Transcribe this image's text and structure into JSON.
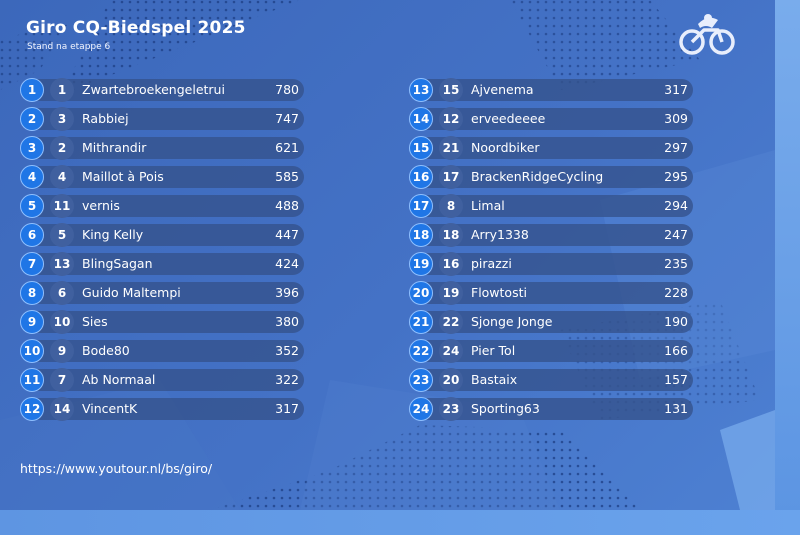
{
  "header": {
    "title": "Giro CQ-Biedspel 2025",
    "subtitle": "Stand na etappe 6",
    "logo_icon": "cyclist-logo-icon"
  },
  "standings_left": [
    {
      "rank": "1",
      "prev": "1",
      "name": "Zwartebroekengeletrui",
      "points": "780"
    },
    {
      "rank": "2",
      "prev": "3",
      "name": "Rabbiej",
      "points": "747"
    },
    {
      "rank": "3",
      "prev": "2",
      "name": "Mithrandir",
      "points": "621"
    },
    {
      "rank": "4",
      "prev": "4",
      "name": "Maillot à Pois",
      "points": "585"
    },
    {
      "rank": "5",
      "prev": "11",
      "name": "vernis",
      "points": "488"
    },
    {
      "rank": "6",
      "prev": "5",
      "name": "King Kelly",
      "points": "447"
    },
    {
      "rank": "7",
      "prev": "13",
      "name": "BlingSagan",
      "points": "424"
    },
    {
      "rank": "8",
      "prev": "6",
      "name": "Guido Maltempi",
      "points": "396"
    },
    {
      "rank": "9",
      "prev": "10",
      "name": "Sies",
      "points": "380"
    },
    {
      "rank": "10",
      "prev": "9",
      "name": "Bode80",
      "points": "352"
    },
    {
      "rank": "11",
      "prev": "7",
      "name": "Ab Normaal",
      "points": "322"
    },
    {
      "rank": "12",
      "prev": "14",
      "name": "VincentK",
      "points": "317"
    }
  ],
  "standings_right": [
    {
      "rank": "13",
      "prev": "15",
      "name": "Ajvenema",
      "points": "317"
    },
    {
      "rank": "14",
      "prev": "12",
      "name": "erveedeeee",
      "points": "309"
    },
    {
      "rank": "15",
      "prev": "21",
      "name": "Noordbiker",
      "points": "297"
    },
    {
      "rank": "16",
      "prev": "17",
      "name": "BrackenRidgeCycling",
      "points": "295"
    },
    {
      "rank": "17",
      "prev": "8",
      "name": "Limal",
      "points": "294"
    },
    {
      "rank": "18",
      "prev": "18",
      "name": "Arry1338",
      "points": "247"
    },
    {
      "rank": "19",
      "prev": "16",
      "name": "pirazzi",
      "points": "235"
    },
    {
      "rank": "20",
      "prev": "19",
      "name": "Flowtosti",
      "points": "228"
    },
    {
      "rank": "21",
      "prev": "22",
      "name": "Sjonge Jonge",
      "points": "190"
    },
    {
      "rank": "22",
      "prev": "24",
      "name": "Pier Tol",
      "points": "166"
    },
    {
      "rank": "23",
      "prev": "20",
      "name": "Bastaix",
      "points": "157"
    },
    {
      "rank": "24",
      "prev": "23",
      "name": "Sporting63",
      "points": "131"
    }
  ],
  "footer": {
    "url": "https://www.youtour.nl/bs/giro/"
  },
  "colors": {
    "background": "#3e6bc0",
    "rank_badge": "#1f76e6",
    "prev_badge": "#40609f",
    "row_bar": "#34528c",
    "text": "#ffffff"
  }
}
